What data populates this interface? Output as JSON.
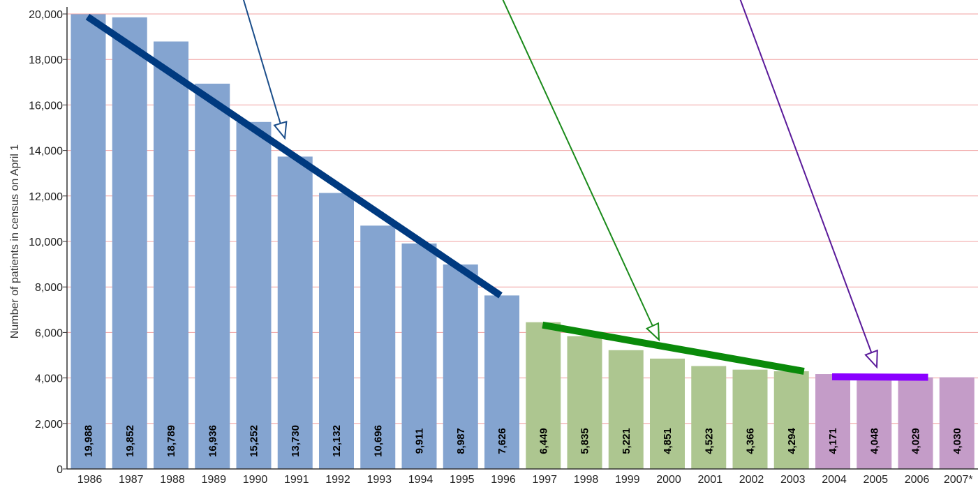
{
  "chart_data": {
    "type": "bar",
    "title": "",
    "xlabel": "",
    "ylabel": "Number of patients in census on April 1",
    "ylim": [
      0,
      20000
    ],
    "ytick_values": [
      0,
      2000,
      4000,
      6000,
      8000,
      10000,
      12000,
      14000,
      16000,
      18000,
      20000
    ],
    "ytick_labels": [
      "0",
      "2,000",
      "4,000",
      "6,000",
      "8,000",
      "10,000",
      "12,000",
      "14,000",
      "16,000",
      "18,000",
      "20,000"
    ],
    "categories": [
      "1986",
      "1987",
      "1988",
      "1989",
      "1990",
      "1991",
      "1992",
      "1993",
      "1994",
      "1995",
      "1996",
      "1997",
      "1998",
      "1999",
      "2000",
      "2001",
      "2002",
      "2003",
      "2004",
      "2005",
      "2006",
      "2007*"
    ],
    "values": [
      19988,
      19852,
      18789,
      16936,
      15252,
      13730,
      12132,
      10696,
      9911,
      8987,
      7626,
      6449,
      5835,
      5221,
      4851,
      4523,
      4366,
      4294,
      4171,
      4048,
      4029,
      4030
    ],
    "value_labels": [
      "19,988",
      "19,852",
      "18,789",
      "16,936",
      "15,252",
      "13,730",
      "12,132",
      "10,696",
      "9,911",
      "8,987",
      "7,626",
      "6,449",
      "5,835",
      "5,221",
      "4,851",
      "4,523",
      "4,366",
      "4,294",
      "4,171",
      "4,048",
      "4,029",
      "4,030"
    ],
    "groups": [
      {
        "from": "1986",
        "to": "1996",
        "color": "#84a4d0"
      },
      {
        "from": "1997",
        "to": "2003",
        "color": "#adc690"
      },
      {
        "from": "2004",
        "to": "2007*",
        "color": "#c49cc8"
      }
    ],
    "trend_lines": [
      {
        "from": "1986",
        "to": "1996",
        "y_start": 20000,
        "y_end": 7626,
        "color": "#003a80"
      },
      {
        "from": "1997",
        "to": "2003",
        "y_start": 6449,
        "y_end": 4294,
        "color": "#0a8a0a"
      },
      {
        "from": "2004",
        "to": "2006",
        "y_start": 4171,
        "y_end": 4029,
        "color": "#8a00ff"
      }
    ],
    "callout_arrows": [
      {
        "color": "#1a4d8a",
        "points_to": "1991"
      },
      {
        "color": "#1a8a1a",
        "points_to": "2000"
      },
      {
        "color": "#5a1a9a",
        "points_to": "2005"
      }
    ],
    "grid": true,
    "grid_color": "#f0a0a0"
  }
}
